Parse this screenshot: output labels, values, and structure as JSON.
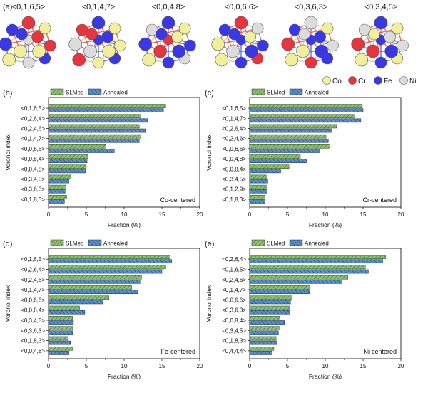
{
  "panel_a": {
    "letter": "(a)",
    "clusters": [
      "<0,1,6,5>",
      "<0,1,4,7>",
      "<0,0,4,8>",
      "<0,0,6,6>",
      "<0,3,6,3>",
      "<0,3,4,5>"
    ],
    "legend": [
      {
        "label": "Co",
        "color": "#f2ef9a"
      },
      {
        "label": "Cr",
        "color": "#e8343c"
      },
      {
        "label": "Fe",
        "color": "#3838e6"
      },
      {
        "label": "Ni",
        "color": "#dcdcdc"
      }
    ]
  },
  "colors": {
    "slmed": "#8fc46a",
    "annealed": "#5b8fd0",
    "slmed_hatch": "#2f6b2a",
    "annealed_hatch": "#1d3f78"
  },
  "chart_data": [
    {
      "panel": "(b)",
      "type": "bar",
      "orientation": "horizontal",
      "title": "Co-centered",
      "xlabel": "Fraction (%)",
      "ylabel": "Voronoi index",
      "xlim": [
        0,
        20
      ],
      "xticks": [
        0,
        5,
        10,
        15,
        20
      ],
      "grid": false,
      "legend": "top-left",
      "categories": [
        "<0,1,6,5>",
        "<0,2,6,4>",
        "<0,2,4,6>",
        "<0,1,4,7>",
        "<0,0,6,6>",
        "<0,0,8,4>",
        "<0,0,4,8>",
        "<0,3,4,5>",
        "<0,3,6,3>",
        "<0,1,8,3>"
      ],
      "series": [
        {
          "name": "SLMed",
          "values": [
            15.5,
            12.2,
            12.0,
            12.2,
            7.6,
            5.2,
            5.0,
            3.0,
            2.3,
            2.4
          ]
        },
        {
          "name": "Annealed",
          "values": [
            15.2,
            13.1,
            12.8,
            12.0,
            8.7,
            5.1,
            4.9,
            2.7,
            2.2,
            2.1
          ]
        }
      ]
    },
    {
      "panel": "(c)",
      "type": "bar",
      "orientation": "horizontal",
      "title": "Cr-centered",
      "xlabel": "Fraction (%)",
      "ylabel": "Voronoi index",
      "xlim": [
        0,
        20
      ],
      "xticks": [
        0,
        5,
        10,
        15,
        20
      ],
      "grid": false,
      "legend": "top-left",
      "categories": [
        "<0,1,6,5>",
        "<0,1,4,7>",
        "<0,2,6,4>",
        "<0,2,4,6>",
        "<0,0,6,6>",
        "<0,0,4,8>",
        "<0,0,8,4>",
        "<0,3,4,5>",
        "<0,1,2,9>",
        "<0,1,8,3>"
      ],
      "series": [
        {
          "name": "SLMed",
          "values": [
            14.9,
            13.8,
            11.5,
            10.1,
            10.5,
            6.7,
            5.2,
            2.2,
            2.2,
            2.0
          ]
        },
        {
          "name": "Annealed",
          "values": [
            15.0,
            14.7,
            10.8,
            10.4,
            9.2,
            7.6,
            4.1,
            2.4,
            2.3,
            2.0
          ]
        }
      ]
    },
    {
      "panel": "(d)",
      "type": "bar",
      "orientation": "horizontal",
      "title": "Fe-centered",
      "xlabel": "Fraction (%)",
      "ylabel": "Voronoi index",
      "xlim": [
        0,
        20
      ],
      "xticks": [
        0,
        5,
        10,
        15,
        20
      ],
      "grid": false,
      "legend": "top-left",
      "categories": [
        "<0,1,6,5>",
        "<0,2,6,4>",
        "<0,2,4,6>",
        "<0,1,4,7>",
        "<0,0,6,6>",
        "<0,0,8,4>",
        "<0,3,4,5>",
        "<0,3,6,3>",
        "<0,1,8,3>",
        "<0,0,4,8>"
      ],
      "series": [
        {
          "name": "SLMed",
          "values": [
            16.1,
            15.5,
            12.3,
            11.0,
            8.0,
            4.1,
            3.2,
            3.2,
            2.6,
            3.2
          ]
        },
        {
          "name": "Annealed",
          "values": [
            16.3,
            15.0,
            12.1,
            11.8,
            7.2,
            4.8,
            3.3,
            3.2,
            2.9,
            2.7
          ]
        }
      ]
    },
    {
      "panel": "(e)",
      "type": "bar",
      "orientation": "horizontal",
      "title": "Ni-centered",
      "xlabel": "Fraction (%)",
      "ylabel": "Voronoi index",
      "xlim": [
        0,
        20
      ],
      "xticks": [
        0,
        5,
        10,
        15,
        20
      ],
      "grid": false,
      "legend": "top-left",
      "categories": [
        "<0,2,6,4>",
        "<0,1,6,5>",
        "<0,2,4,6>",
        "<0,1,4,7>",
        "<0,0,6,6>",
        "<0,3,6,3>",
        "<0,0,8,4>",
        "<0,3,4,5>",
        "<0,1,8,3>",
        "<0,4,4,4>"
      ],
      "series": [
        {
          "name": "SLMed",
          "values": [
            18.0,
            15.3,
            13.0,
            8.0,
            5.6,
            5.3,
            4.0,
            3.9,
            3.5,
            3.2
          ]
        },
        {
          "name": "Annealed",
          "values": [
            17.6,
            15.7,
            12.2,
            8.0,
            5.4,
            5.3,
            4.6,
            3.8,
            3.6,
            3.0
          ]
        }
      ]
    }
  ]
}
